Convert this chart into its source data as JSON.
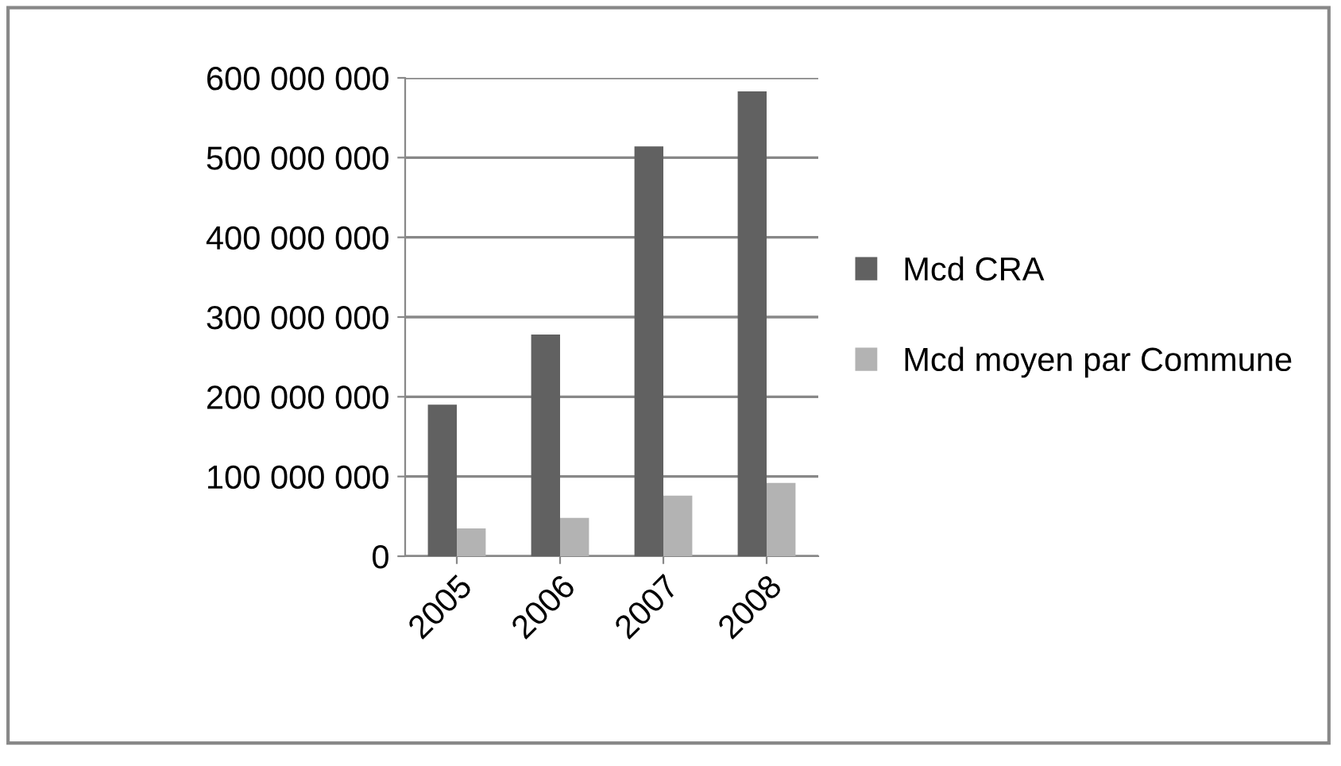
{
  "chart_data": {
    "type": "bar",
    "categories": [
      "2005",
      "2006",
      "2007",
      "2008"
    ],
    "series": [
      {
        "name": "Mcd CRA",
        "color": "#616161",
        "values": [
          190000000,
          278000000,
          514000000,
          583000000
        ]
      },
      {
        "name": "Mcd moyen par Commune",
        "color": "#b3b3b3",
        "values": [
          35000000,
          48000000,
          76000000,
          92000000
        ]
      }
    ],
    "ylim": [
      0,
      600000000
    ],
    "yticks": [
      {
        "value": 0,
        "label": "0"
      },
      {
        "value": 100000000,
        "label": "100 000 000"
      },
      {
        "value": 200000000,
        "label": "200 000 000"
      },
      {
        "value": 300000000,
        "label": "300 000 000"
      },
      {
        "value": 400000000,
        "label": "400 000 000"
      },
      {
        "value": 500000000,
        "label": "500 000 000"
      },
      {
        "value": 600000000,
        "label": "600 000 000"
      }
    ],
    "grid": "y",
    "legend": "right"
  }
}
